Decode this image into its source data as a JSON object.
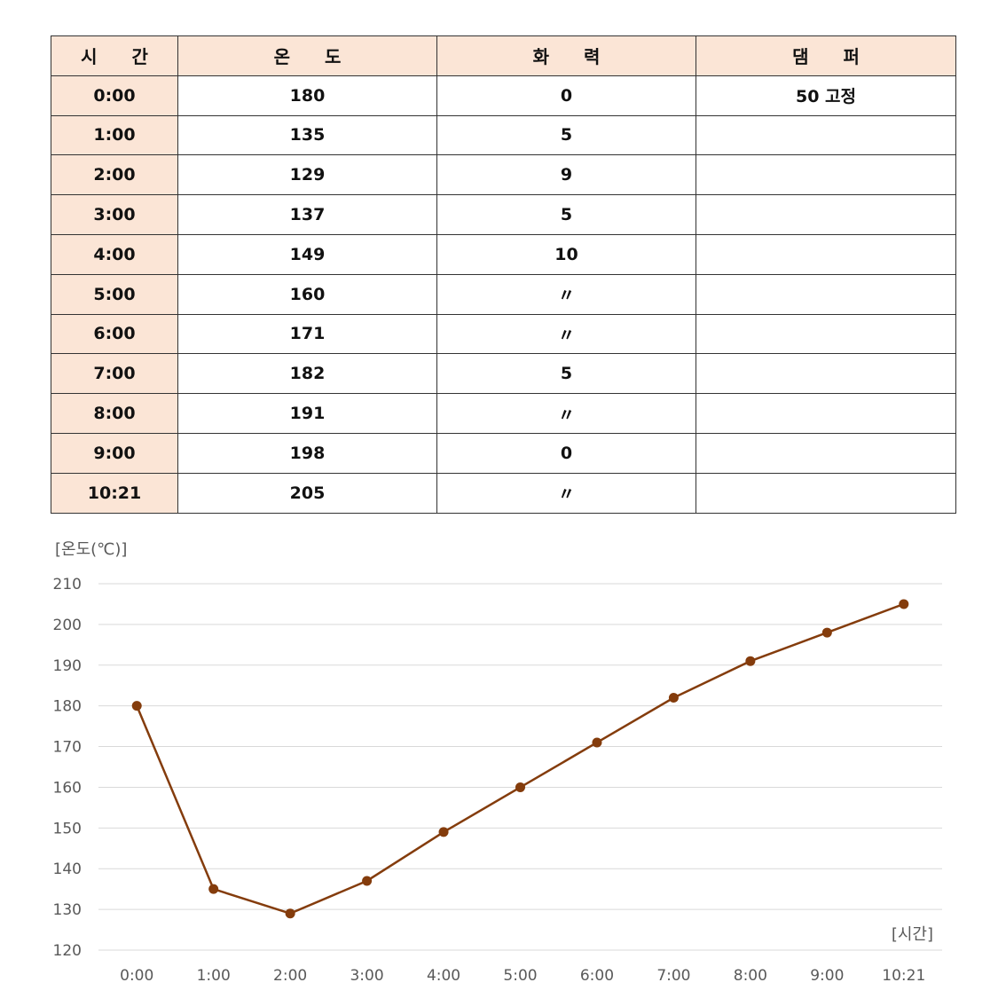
{
  "table": {
    "headers": [
      "시 간",
      "온 도",
      "화 력",
      "댐 퍼"
    ],
    "rows": [
      [
        "0:00",
        "180",
        "0",
        "50 고정"
      ],
      [
        "1:00",
        "135",
        "5",
        ""
      ],
      [
        "2:00",
        "129",
        "9",
        ""
      ],
      [
        "3:00",
        "137",
        "5",
        ""
      ],
      [
        "4:00",
        "149",
        "10",
        ""
      ],
      [
        "5:00",
        "160",
        "〃",
        ""
      ],
      [
        "6:00",
        "171",
        "〃",
        ""
      ],
      [
        "7:00",
        "182",
        "5",
        ""
      ],
      [
        "8:00",
        "191",
        "〃",
        ""
      ],
      [
        "9:00",
        "198",
        "0",
        ""
      ],
      [
        "10:21",
        "205",
        "〃",
        ""
      ]
    ],
    "header_color": "#fbe5d6"
  },
  "chart_data": {
    "type": "line",
    "categories": [
      "0:00",
      "1:00",
      "2:00",
      "3:00",
      "4:00",
      "5:00",
      "6:00",
      "7:00",
      "8:00",
      "9:00",
      "10:21"
    ],
    "series": [
      {
        "values": [
          180,
          135,
          129,
          137,
          149,
          160,
          171,
          182,
          191,
          198,
          205
        ],
        "color": "#843c0c"
      }
    ],
    "ylabel": "[온도(℃)]",
    "xlabel": "[시간]",
    "ylim": [
      120,
      210
    ],
    "yticks": [
      120,
      130,
      140,
      150,
      160,
      170,
      180,
      190,
      200,
      210
    ],
    "grid": true,
    "legend": "none"
  }
}
